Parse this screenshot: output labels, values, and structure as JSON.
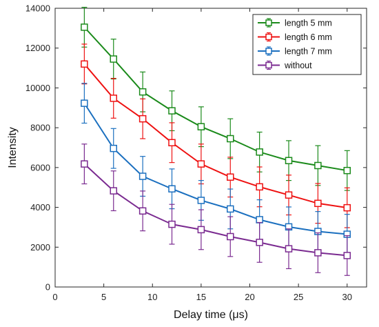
{
  "chart_data": {
    "type": "line",
    "xlabel": "Delay time (μs)",
    "ylabel": "Intensity",
    "xlim": [
      0,
      32
    ],
    "ylim": [
      0,
      14000
    ],
    "xticks": [
      0,
      5,
      10,
      15,
      20,
      25,
      30
    ],
    "yticks": [
      0,
      2000,
      4000,
      6000,
      8000,
      10000,
      12000,
      14000
    ],
    "grid": false,
    "legend_position": "top-right",
    "x": [
      3,
      6,
      9,
      12,
      15,
      18,
      21,
      24,
      27,
      30
    ],
    "series": [
      {
        "name": "length 5 mm",
        "color": "#1a8a1a",
        "values": [
          13050,
          11450,
          9800,
          8850,
          8050,
          7450,
          6780,
          6350,
          6100,
          5850
        ],
        "errors": [
          1000,
          1000,
          1000,
          1000,
          1000,
          1000,
          1000,
          1000,
          1000,
          1000
        ]
      },
      {
        "name": "length 6 mm",
        "color": "#ee1111",
        "values": [
          11200,
          9480,
          8450,
          7250,
          6180,
          5520,
          5030,
          4620,
          4200,
          3980
        ],
        "errors": [
          1000,
          1000,
          1000,
          1000,
          1000,
          1000,
          1000,
          1000,
          1000,
          1000
        ]
      },
      {
        "name": "length 7 mm",
        "color": "#1a6fbf",
        "values": [
          9230,
          6960,
          5560,
          4930,
          4350,
          3920,
          3380,
          3020,
          2790,
          2650
        ],
        "errors": [
          1000,
          1000,
          1000,
          1000,
          1000,
          1000,
          1000,
          1000,
          1000,
          1000
        ]
      },
      {
        "name": "without",
        "color": "#7a2a90",
        "values": [
          6180,
          4830,
          3820,
          3150,
          2880,
          2530,
          2240,
          1920,
          1720,
          1580
        ],
        "errors": [
          1000,
          1000,
          1000,
          1000,
          1000,
          1000,
          1000,
          1000,
          1000,
          1000
        ]
      }
    ]
  }
}
